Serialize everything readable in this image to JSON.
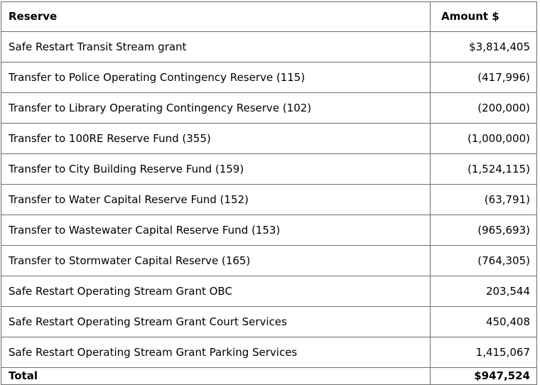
{
  "table": {
    "columns": [
      {
        "label": "Reserve"
      },
      {
        "label": "Amount $"
      }
    ],
    "rows": [
      {
        "reserve": "Safe Restart Transit Stream grant",
        "amount": "$3,814,405"
      },
      {
        "reserve": "Transfer to Police Operating Contingency Reserve (115)",
        "amount": "(417,996)"
      },
      {
        "reserve": "Transfer to Library Operating Contingency Reserve (102)",
        "amount": "(200,000)"
      },
      {
        "reserve": "Transfer to 100RE Reserve Fund (355)",
        "amount": "(1,000,000)"
      },
      {
        "reserve": "Transfer to City Building Reserve Fund (159)",
        "amount": "(1,524,115)"
      },
      {
        "reserve": "Transfer to Water Capital Reserve Fund (152)",
        "amount": "(63,791)"
      },
      {
        "reserve": "Transfer to Wastewater Capital Reserve Fund (153)",
        "amount": "(965,693)"
      },
      {
        "reserve": "Transfer to Stormwater Capital Reserve (165)",
        "amount": "(764,305)"
      },
      {
        "reserve": "Safe Restart Operating Stream Grant OBC",
        "amount": "203,544"
      },
      {
        "reserve": "Safe Restart Operating Stream Grant Court Services",
        "amount": "450,408"
      },
      {
        "reserve": "Safe Restart Operating Stream Grant Parking Services",
        "amount": "1,415,067"
      }
    ],
    "total": {
      "label": "Total",
      "amount": "$947,524"
    },
    "colors": {
      "border": "#6e6e6e",
      "text": "#000000",
      "background": "#ffffff"
    }
  }
}
